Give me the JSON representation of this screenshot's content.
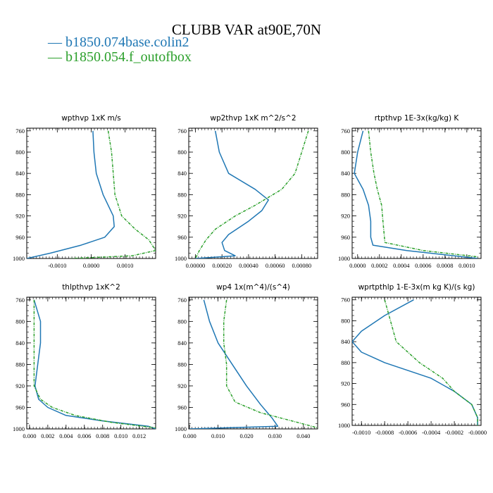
{
  "title": "CLUBB VAR at90E,70N",
  "legend": [
    {
      "label": "— b1850.074base.colin2",
      "color": "#1f77b4"
    },
    {
      "label": "— b1850.054.f_outofbox",
      "color": "#2ca02c"
    }
  ],
  "chart_data": [
    {
      "type": "line",
      "title": "wpthvp   1xK m/s",
      "xlim": [
        -0.0019,
        0.0019
      ],
      "ylim": [
        1000,
        755
      ],
      "xticks": [
        -0.001,
        0.0,
        0.001
      ],
      "xtick_labels": [
        "-0.0010",
        "0.0000",
        "0.0010"
      ],
      "yticks": [
        760,
        800,
        840,
        880,
        920,
        960,
        1000
      ],
      "series": [
        {
          "color": "#1f77b4",
          "points": [
            [
              5e-05,
              760
            ],
            [
              8e-05,
              800
            ],
            [
              0.00015,
              840
            ],
            [
              0.00035,
              880
            ],
            [
              0.00065,
              920
            ],
            [
              0.00068,
              940
            ],
            [
              0.0004,
              960
            ],
            [
              -0.0003,
              975
            ],
            [
              -0.0012,
              990
            ],
            [
              -0.0019,
              1000
            ]
          ]
        },
        {
          "color": "#2ca02c",
          "dash": true,
          "points": [
            [
              0.0005,
              760
            ],
            [
              0.0006,
              800
            ],
            [
              0.00065,
              840
            ],
            [
              0.0007,
              880
            ],
            [
              0.0009,
              920
            ],
            [
              0.0013,
              945
            ],
            [
              0.0017,
              965
            ],
            [
              0.0019,
              985
            ],
            [
              0.0012,
              995
            ],
            [
              -0.0006,
              1000
            ]
          ]
        }
      ]
    },
    {
      "type": "line",
      "title": "wp2thvp   1xK m^2/s^2",
      "xlim": [
        -5e-05,
        0.00092
      ],
      "ylim": [
        1000,
        755
      ],
      "xticks": [
        0.0,
        0.0002,
        0.0004,
        0.0006,
        0.0008
      ],
      "xtick_labels": [
        "0.00000",
        "0.00020",
        "0.00040",
        "0.00060",
        "0.00080"
      ],
      "yticks": [
        760,
        800,
        840,
        880,
        920,
        960,
        1000
      ],
      "series": [
        {
          "color": "#1f77b4",
          "points": [
            [
              0.00015,
              760
            ],
            [
              0.00018,
              800
            ],
            [
              0.00025,
              840
            ],
            [
              0.00045,
              870
            ],
            [
              0.00055,
              890
            ],
            [
              0.0005,
              910
            ],
            [
              0.0004,
              930
            ],
            [
              0.00025,
              955
            ],
            [
              0.0002,
              970
            ],
            [
              0.00022,
              985
            ],
            [
              0.0003,
              995
            ],
            [
              0.0,
              1000
            ]
          ]
        },
        {
          "color": "#2ca02c",
          "dash": true,
          "points": [
            [
              0.00085,
              760
            ],
            [
              0.0008,
              800
            ],
            [
              0.00075,
              840
            ],
            [
              0.00065,
              870
            ],
            [
              0.00045,
              900
            ],
            [
              0.0003,
              920
            ],
            [
              0.00015,
              945
            ],
            [
              8e-05,
              965
            ],
            [
              3e-05,
              985
            ],
            [
              0.0,
              1000
            ]
          ]
        }
      ]
    },
    {
      "type": "line",
      "title": "rtpthvp   1E-3x(kg/kg) K",
      "xlim": [
        -5e-05,
        0.00113
      ],
      "ylim": [
        1000,
        755
      ],
      "xticks": [
        0.0,
        0.0002,
        0.0004,
        0.0006,
        0.0008,
        0.001
      ],
      "xtick_labels": [
        "0.0000",
        "0.0002",
        "0.0004",
        "0.0006",
        "0.0008",
        "0.0010"
      ],
      "yticks": [
        760,
        800,
        840,
        880,
        920,
        960,
        1000
      ],
      "series": [
        {
          "color": "#1f77b4",
          "points": [
            [
              5e-05,
              760
            ],
            [
              0.0,
              800
            ],
            [
              -3e-05,
              840
            ],
            [
              5e-05,
              870
            ],
            [
              0.0001,
              900
            ],
            [
              0.00012,
              930
            ],
            [
              0.00012,
              960
            ],
            [
              0.00014,
              975
            ],
            [
              0.00045,
              985
            ],
            [
              0.0011,
              1000
            ]
          ]
        },
        {
          "color": "#2ca02c",
          "dash": true,
          "points": [
            [
              0.0001,
              760
            ],
            [
              0.00012,
              800
            ],
            [
              0.00015,
              840
            ],
            [
              0.00018,
              870
            ],
            [
              0.00022,
              900
            ],
            [
              0.00023,
              925
            ],
            [
              0.00025,
              970
            ],
            [
              0.0006,
              985
            ],
            [
              0.0011,
              997
            ]
          ]
        }
      ]
    },
    {
      "type": "line",
      "title": "thlpthvp   1xK^2",
      "xlim": [
        -0.0003,
        0.0138
      ],
      "ylim": [
        1000,
        755
      ],
      "xticks": [
        0.0,
        0.002,
        0.004,
        0.006,
        0.008,
        0.01,
        0.012
      ],
      "xtick_labels": [
        "0.000",
        "0.002",
        "0.004",
        "0.006",
        "0.008",
        "0.010",
        "0.012"
      ],
      "yticks": [
        760,
        800,
        840,
        880,
        920,
        960,
        1000
      ],
      "series": [
        {
          "color": "#1f77b4",
          "points": [
            [
              0.0005,
              760
            ],
            [
              0.0012,
              800
            ],
            [
              0.0012,
              840
            ],
            [
              0.0009,
              880
            ],
            [
              0.0006,
              920
            ],
            [
              0.001,
              945
            ],
            [
              0.002,
              960
            ],
            [
              0.004,
              975
            ],
            [
              0.008,
              985
            ],
            [
              0.013,
              995
            ],
            [
              0.0138,
              1000
            ]
          ]
        },
        {
          "color": "#2ca02c",
          "dash": true,
          "points": [
            [
              0.0005,
              760
            ],
            [
              0.0005,
              800
            ],
            [
              0.0005,
              840
            ],
            [
              0.0005,
              880
            ],
            [
              0.0005,
              920
            ],
            [
              0.0012,
              945
            ],
            [
              0.0025,
              960
            ],
            [
              0.005,
              975
            ],
            [
              0.009,
              988
            ],
            [
              0.0138,
              998
            ]
          ]
        }
      ]
    },
    {
      "type": "line",
      "title": "wp4   1x(m^4)/(s^4)",
      "xlim": [
        -0.0003,
        0.045
      ],
      "ylim": [
        1000,
        755
      ],
      "xticks": [
        0.0,
        0.01,
        0.02,
        0.03,
        0.04
      ],
      "xtick_labels": [
        "0.000",
        "0.010",
        "0.020",
        "0.030",
        "0.040"
      ],
      "yticks": [
        760,
        800,
        840,
        880,
        920,
        960,
        1000
      ],
      "series": [
        {
          "color": "#1f77b4",
          "points": [
            [
              0.005,
              760
            ],
            [
              0.007,
              800
            ],
            [
              0.01,
              840
            ],
            [
              0.015,
              880
            ],
            [
              0.02,
              920
            ],
            [
              0.025,
              955
            ],
            [
              0.029,
              980
            ],
            [
              0.031,
              995
            ],
            [
              0.0,
              1000
            ]
          ]
        },
        {
          "color": "#2ca02c",
          "dash": true,
          "points": [
            [
              0.013,
              760
            ],
            [
              0.012,
              800
            ],
            [
              0.012,
              840
            ],
            [
              0.013,
              880
            ],
            [
              0.013,
              920
            ],
            [
              0.016,
              950
            ],
            [
              0.025,
              970
            ],
            [
              0.038,
              988
            ],
            [
              0.045,
              998
            ]
          ]
        }
      ]
    },
    {
      "type": "line",
      "title": "wprtpthlp   1-E-3x(m kg K)/(s kg)",
      "xlim": [
        -0.00108,
        3e-05
      ],
      "ylim": [
        1000,
        755
      ],
      "xticks": [
        -0.001,
        -0.0008,
        -0.0006,
        -0.0004,
        -0.0002,
        0.0
      ],
      "xtick_labels": [
        "-0.0010",
        "-0.0008",
        "-0.0006",
        "-0.0004",
        "-0.0002",
        "-0.0000"
      ],
      "yticks": [
        760,
        800,
        840,
        880,
        920,
        960,
        1000
      ],
      "series": [
        {
          "color": "#1f77b4",
          "points": [
            [
              -0.00055,
              760
            ],
            [
              -0.0008,
              790
            ],
            [
              -0.001,
              820
            ],
            [
              -0.00108,
              840
            ],
            [
              -0.001,
              860
            ],
            [
              -0.0008,
              880
            ],
            [
              -0.0004,
              910
            ],
            [
              -0.0002,
              935
            ],
            [
              -5e-05,
              960
            ],
            [
              0.0,
              985
            ],
            [
              0.0,
              1000
            ]
          ]
        },
        {
          "color": "#2ca02c",
          "dash": true,
          "points": [
            [
              -0.0008,
              760
            ],
            [
              -0.00075,
              800
            ],
            [
              -0.0007,
              840
            ],
            [
              -0.0005,
              880
            ],
            [
              -0.0003,
              910
            ],
            [
              -0.0002,
              935
            ],
            [
              -5e-05,
              960
            ],
            [
              0.0,
              985
            ],
            [
              0.0,
              1000
            ]
          ]
        }
      ]
    }
  ]
}
